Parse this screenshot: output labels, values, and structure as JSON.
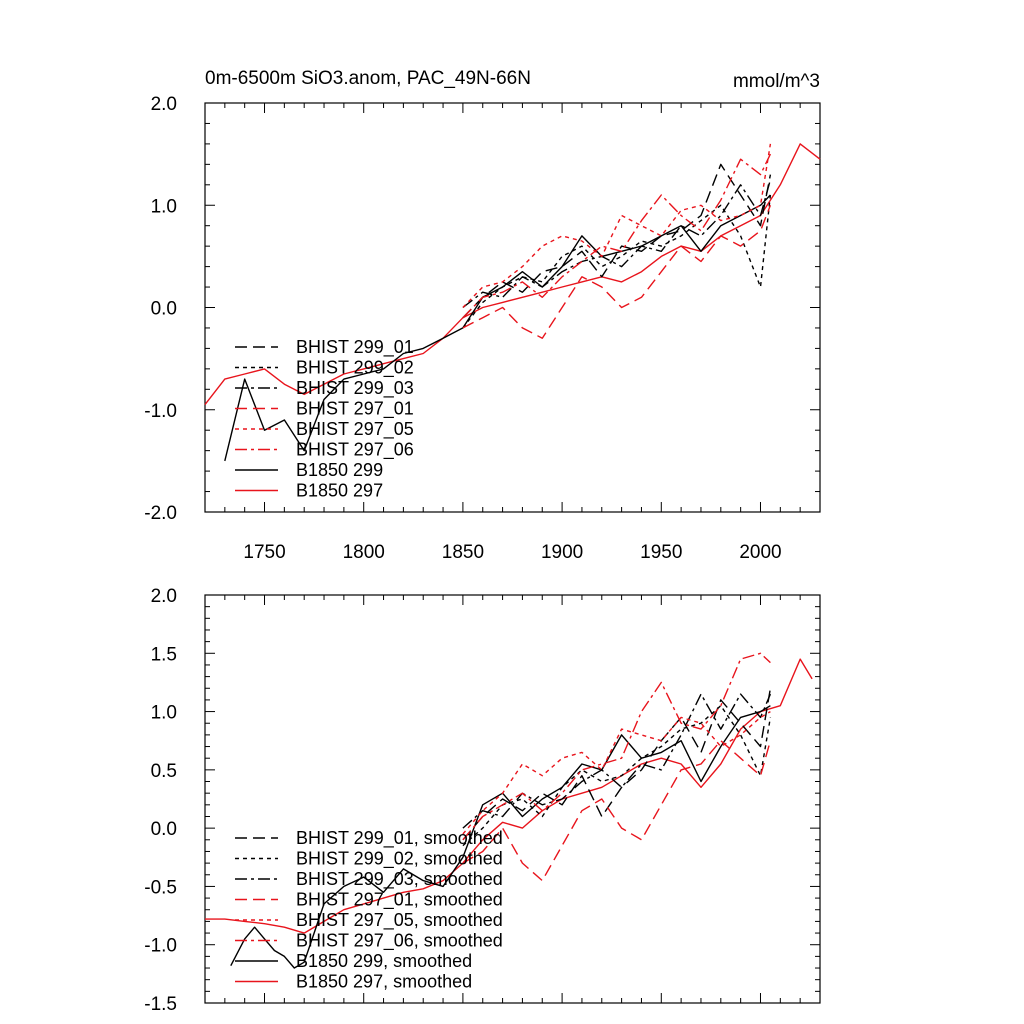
{
  "title_left": "0m-6500m SiO3.anom, PAC_49N-66N",
  "title_right": "mmol/m^3",
  "colors": {
    "black": "#000000",
    "red": "#e8141c"
  },
  "chart_data": [
    {
      "type": "line",
      "panel": "top",
      "xlim": [
        1720,
        2030
      ],
      "ylim": [
        -2.0,
        2.0
      ],
      "x_ticks": [
        1750,
        1800,
        1850,
        1900,
        1950,
        2000
      ],
      "y_ticks": [
        -2.0,
        -1.0,
        0.0,
        1.0,
        2.0
      ],
      "y_tick_labels": [
        "-2.0",
        "-1.0",
        "0.0",
        "1.0",
        "2.0"
      ],
      "x_tick_labels": [
        "1750",
        "1800",
        "1850",
        "1900",
        "1950",
        "2000"
      ],
      "legend": [
        "BHIST 299_01",
        "BHIST 299_02",
        "BHIST 299_03",
        "BHIST 297_01",
        "BHIST 297_05",
        "BHIST 297_06",
        "B1850 299",
        "B1850 297"
      ],
      "series": [
        {
          "name": "B1850 297",
          "color": "red",
          "dash": "solid",
          "x": [
            1720,
            1730,
            1740,
            1750,
            1760,
            1770,
            1780,
            1790,
            1800,
            1810,
            1820,
            1830,
            1840,
            1850,
            1860,
            1870,
            1880,
            1890,
            1900,
            1910,
            1920,
            1930,
            1940,
            1950,
            1960,
            1970,
            1980,
            1990,
            2000,
            2010,
            2020,
            2030
          ],
          "values": [
            -0.95,
            -0.7,
            -0.65,
            -0.6,
            -0.75,
            -0.85,
            -0.75,
            -0.65,
            -0.6,
            -0.55,
            -0.5,
            -0.45,
            -0.3,
            -0.1,
            0.0,
            0.05,
            0.1,
            0.15,
            0.2,
            0.25,
            0.3,
            0.25,
            0.35,
            0.5,
            0.6,
            0.55,
            0.7,
            0.8,
            0.9,
            1.2,
            1.6,
            1.45
          ]
        },
        {
          "name": "B1850 299",
          "color": "black",
          "dash": "solid",
          "x": [
            1730,
            1740,
            1750,
            1760,
            1770,
            1780,
            1790,
            1800,
            1810,
            1820,
            1830,
            1840,
            1850,
            1860,
            1870,
            1880,
            1890,
            1900,
            1910,
            1920,
            1930,
            1940,
            1950,
            1960,
            1970,
            1980,
            1990,
            2000,
            2005
          ],
          "values": [
            -1.5,
            -0.7,
            -1.2,
            -1.1,
            -1.4,
            -0.9,
            -0.7,
            -0.65,
            -0.6,
            -0.45,
            -0.4,
            -0.3,
            -0.2,
            0.1,
            0.2,
            0.35,
            0.2,
            0.4,
            0.7,
            0.5,
            0.55,
            0.6,
            0.7,
            0.8,
            0.55,
            0.8,
            0.9,
            1.0,
            1.1
          ]
        },
        {
          "name": "BHIST 299_01",
          "color": "black",
          "dash": "long",
          "x": [
            1850,
            1860,
            1870,
            1880,
            1890,
            1900,
            1910,
            1920,
            1930,
            1940,
            1950,
            1960,
            1970,
            1980,
            1990,
            2000,
            2005
          ],
          "values": [
            -0.1,
            0.1,
            0.25,
            0.15,
            0.35,
            0.4,
            0.55,
            0.3,
            0.6,
            0.55,
            0.7,
            0.75,
            0.9,
            1.4,
            1.1,
            0.8,
            1.3
          ]
        },
        {
          "name": "BHIST 299_02",
          "color": "black",
          "dash": "short",
          "x": [
            1850,
            1860,
            1870,
            1880,
            1890,
            1900,
            1910,
            1920,
            1930,
            1940,
            1950,
            1960,
            1970,
            1980,
            1990,
            2000,
            2005
          ],
          "values": [
            -0.2,
            0.05,
            0.2,
            0.3,
            0.25,
            0.5,
            0.6,
            0.4,
            0.5,
            0.65,
            0.6,
            0.7,
            0.85,
            1.0,
            0.7,
            0.2,
            1.1
          ]
        },
        {
          "name": "BHIST 299_03",
          "color": "black",
          "dash": "dashdot",
          "x": [
            1850,
            1860,
            1870,
            1880,
            1890,
            1900,
            1910,
            1920,
            1930,
            1940,
            1950,
            1960,
            1970,
            1980,
            1990,
            2000,
            2005
          ],
          "values": [
            0.0,
            0.15,
            0.1,
            0.3,
            0.2,
            0.35,
            0.45,
            0.5,
            0.4,
            0.6,
            0.55,
            0.8,
            0.7,
            0.9,
            1.2,
            0.9,
            1.25
          ]
        },
        {
          "name": "BHIST 297_01",
          "color": "red",
          "dash": "long",
          "x": [
            1850,
            1860,
            1870,
            1880,
            1890,
            1900,
            1910,
            1920,
            1930,
            1940,
            1950,
            1960,
            1970,
            1980,
            1990,
            2000,
            2005
          ],
          "values": [
            -0.2,
            -0.1,
            0.0,
            -0.2,
            -0.3,
            0.0,
            0.3,
            0.2,
            0.0,
            0.1,
            0.35,
            0.6,
            0.45,
            0.7,
            0.6,
            0.75,
            1.0
          ]
        },
        {
          "name": "BHIST 297_05",
          "color": "red",
          "dash": "short",
          "x": [
            1850,
            1860,
            1870,
            1880,
            1890,
            1900,
            1910,
            1920,
            1930,
            1940,
            1950,
            1960,
            1970,
            1980,
            1990,
            2000,
            2005
          ],
          "values": [
            0.0,
            0.2,
            0.25,
            0.4,
            0.6,
            0.7,
            0.65,
            0.5,
            0.9,
            0.8,
            0.7,
            0.95,
            1.0,
            0.85,
            0.9,
            1.0,
            1.6
          ]
        },
        {
          "name": "BHIST 297_06",
          "color": "red",
          "dash": "dashdot",
          "x": [
            1850,
            1860,
            1870,
            1880,
            1890,
            1900,
            1910,
            1920,
            1930,
            1940,
            1950,
            1960,
            1970,
            1980,
            1990,
            2000,
            2005
          ],
          "values": [
            -0.1,
            0.1,
            0.15,
            0.25,
            0.1,
            0.3,
            0.45,
            0.6,
            0.55,
            0.85,
            1.1,
            0.9,
            0.75,
            1.05,
            1.45,
            1.3,
            1.5
          ]
        }
      ]
    },
    {
      "type": "line",
      "panel": "bottom",
      "xlim": [
        1720,
        2030
      ],
      "ylim": [
        -1.5,
        2.0
      ],
      "x_ticks": [
        1750,
        1800,
        1850,
        1900,
        1950,
        2000
      ],
      "y_ticks": [
        -1.5,
        -1.0,
        -0.5,
        0.0,
        0.5,
        1.0,
        1.5,
        2.0
      ],
      "y_tick_labels": [
        "-1.5",
        "-1.0",
        "-0.5",
        "0.0",
        "0.5",
        "1.0",
        "1.5",
        "2.0"
      ],
      "legend": [
        "BHIST 299_01, smoothed",
        "BHIST 299_02, smoothed",
        "BHIST 299_03, smoothed",
        "BHIST 297_01, smoothed",
        "BHIST 297_05, smoothed",
        "BHIST 297_06, smoothed",
        "B1850 299, smoothed",
        "B1850 297, smoothed"
      ],
      "series": [
        {
          "name": "B1850 297, smoothed",
          "color": "red",
          "dash": "solid",
          "x": [
            1720,
            1730,
            1740,
            1750,
            1760,
            1770,
            1780,
            1790,
            1800,
            1810,
            1820,
            1830,
            1840,
            1850,
            1860,
            1870,
            1880,
            1890,
            1900,
            1910,
            1920,
            1930,
            1940,
            1950,
            1960,
            1970,
            1980,
            1990,
            2000,
            2010,
            2020,
            2026
          ],
          "values": [
            -0.78,
            -0.78,
            -0.8,
            -0.82,
            -0.85,
            -0.9,
            -0.8,
            -0.7,
            -0.65,
            -0.6,
            -0.55,
            -0.52,
            -0.45,
            -0.3,
            -0.1,
            0.05,
            0.0,
            0.15,
            0.25,
            0.3,
            0.35,
            0.45,
            0.55,
            0.6,
            0.55,
            0.35,
            0.55,
            0.85,
            1.0,
            1.05,
            1.45,
            1.28
          ]
        },
        {
          "name": "B1850 299, smoothed",
          "color": "black",
          "dash": "solid",
          "x": [
            1733,
            1740,
            1745,
            1750,
            1755,
            1760,
            1765,
            1770,
            1775,
            1780,
            1790,
            1800,
            1810,
            1820,
            1830,
            1840,
            1850,
            1860,
            1870,
            1880,
            1890,
            1900,
            1910,
            1920,
            1930,
            1940,
            1950,
            1960,
            1970,
            1980,
            1990,
            2000,
            2005
          ],
          "values": [
            -1.18,
            -0.95,
            -0.85,
            -0.95,
            -1.05,
            -1.1,
            -1.2,
            -1.15,
            -0.9,
            -0.65,
            -0.5,
            -0.42,
            -0.55,
            -0.35,
            -0.45,
            -0.5,
            -0.25,
            0.2,
            0.3,
            0.1,
            0.25,
            0.35,
            0.55,
            0.5,
            0.8,
            0.6,
            0.65,
            0.75,
            0.4,
            0.7,
            0.95,
            1.0,
            1.05
          ]
        },
        {
          "name": "BHIST 299_01, smoothed",
          "color": "black",
          "dash": "long",
          "x": [
            1850,
            1860,
            1870,
            1880,
            1890,
            1900,
            1910,
            1920,
            1930,
            1940,
            1950,
            1960,
            1970,
            1980,
            1990,
            2000,
            2005
          ],
          "values": [
            -0.1,
            0.1,
            0.25,
            0.15,
            0.3,
            0.2,
            0.45,
            0.1,
            0.35,
            0.5,
            0.75,
            0.95,
            0.65,
            1.1,
            0.9,
            0.7,
            1.2
          ]
        },
        {
          "name": "BHIST 299_02, smoothed",
          "color": "black",
          "dash": "short",
          "x": [
            1850,
            1860,
            1870,
            1880,
            1890,
            1900,
            1910,
            1920,
            1930,
            1940,
            1950,
            1960,
            1970,
            1980,
            1990,
            2000,
            2005
          ],
          "values": [
            -0.15,
            0.0,
            0.2,
            0.25,
            0.1,
            0.35,
            0.5,
            0.4,
            0.45,
            0.6,
            0.7,
            0.85,
            0.9,
            1.05,
            0.8,
            0.45,
            0.95
          ]
        },
        {
          "name": "BHIST 299_03, smoothed",
          "color": "black",
          "dash": "dashdot",
          "x": [
            1850,
            1860,
            1870,
            1880,
            1890,
            1900,
            1910,
            1920,
            1930,
            1940,
            1950,
            1960,
            1970,
            1980,
            1990,
            2000,
            2005
          ],
          "values": [
            0.0,
            0.15,
            0.1,
            0.3,
            0.2,
            0.25,
            0.4,
            0.5,
            0.35,
            0.55,
            0.5,
            0.8,
            1.15,
            0.85,
            1.15,
            0.95,
            1.15
          ]
        },
        {
          "name": "BHIST 297_01, smoothed",
          "color": "red",
          "dash": "long",
          "x": [
            1850,
            1860,
            1870,
            1880,
            1890,
            1900,
            1910,
            1920,
            1930,
            1940,
            1950,
            1960,
            1970,
            1980,
            1990,
            2000,
            2005
          ],
          "values": [
            -0.3,
            -0.2,
            0.0,
            -0.3,
            -0.45,
            -0.15,
            0.15,
            0.25,
            0.0,
            -0.1,
            0.2,
            0.5,
            0.55,
            0.75,
            0.6,
            0.45,
            0.75
          ]
        },
        {
          "name": "BHIST 297_05, smoothed",
          "color": "red",
          "dash": "short",
          "x": [
            1850,
            1860,
            1870,
            1880,
            1890,
            1900,
            1910,
            1920,
            1930,
            1940,
            1950,
            1960,
            1970,
            1980,
            1990,
            2000,
            2005
          ],
          "values": [
            -0.05,
            0.15,
            0.3,
            0.55,
            0.45,
            0.6,
            0.65,
            0.5,
            0.85,
            0.8,
            0.75,
            0.95,
            0.9,
            0.7,
            0.8,
            0.95,
            1.0
          ]
        },
        {
          "name": "BHIST 297_06, smoothed",
          "color": "red",
          "dash": "dashdot",
          "x": [
            1850,
            1860,
            1870,
            1880,
            1890,
            1900,
            1910,
            1920,
            1930,
            1940,
            1950,
            1960,
            1970,
            1980,
            1990,
            2000,
            2005
          ],
          "values": [
            -0.1,
            0.1,
            0.2,
            0.3,
            0.15,
            0.3,
            0.5,
            0.55,
            0.6,
            1.0,
            1.25,
            0.9,
            0.85,
            1.05,
            1.45,
            1.5,
            1.42
          ]
        }
      ]
    }
  ]
}
